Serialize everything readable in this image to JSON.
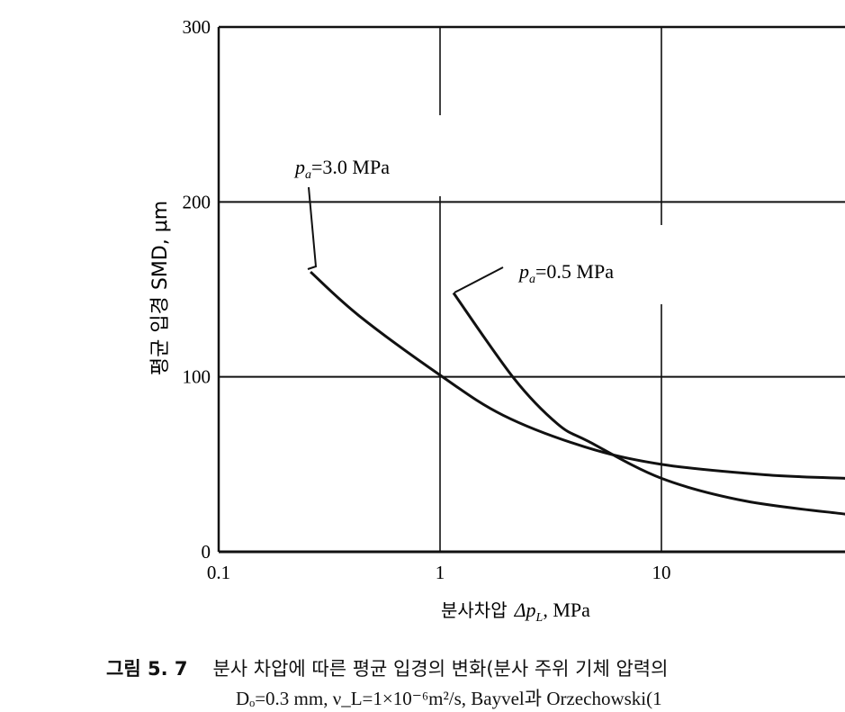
{
  "chart_data": {
    "type": "line",
    "xlabel": "분사차압 Δp_L, MPa",
    "xlabel_parts": {
      "korean": "분사차압",
      "symbol": "Δp",
      "sub": "L",
      "unit": ", MPa"
    },
    "ylabel": "평균 입경 SMD, μm",
    "x_scale": "log",
    "xlim": [
      0.1,
      100
    ],
    "ylim": [
      0,
      300
    ],
    "x_ticks": [
      "0.1",
      "1",
      "10"
    ],
    "y_ticks": [
      "0",
      "100",
      "200",
      "300"
    ],
    "grid": true,
    "series": [
      {
        "name": "p_a=3.0 MPa",
        "label_parts": {
          "p": "p",
          "sub": "a",
          "rest": "=3.0 MPa"
        },
        "x": [
          0.26,
          0.43,
          1.0,
          1.93,
          4.5,
          10,
          29.5,
          68
        ],
        "y": [
          160,
          135,
          101,
          78,
          60,
          50,
          44,
          42
        ]
      },
      {
        "name": "p_a=0.5 MPa",
        "label_parts": {
          "p": "p",
          "sub": "a",
          "rest": "=0.5 MPa"
        },
        "x": [
          1.15,
          2.16,
          3.4,
          4.7,
          10,
          24,
          68
        ],
        "y": [
          148,
          99,
          73,
          63,
          42,
          29,
          21.5
        ]
      }
    ]
  },
  "caption": {
    "line1_number": "그림 5. 7",
    "line1_text": "분사 차압에 따른 평균 입경의 변화(분사 주위 기체 압력의",
    "line2_text": "Dₒ=0.3 mm,  ν_L=1×10⁻⁶m²/s,  Bayvel과 Orzechowski(1"
  }
}
